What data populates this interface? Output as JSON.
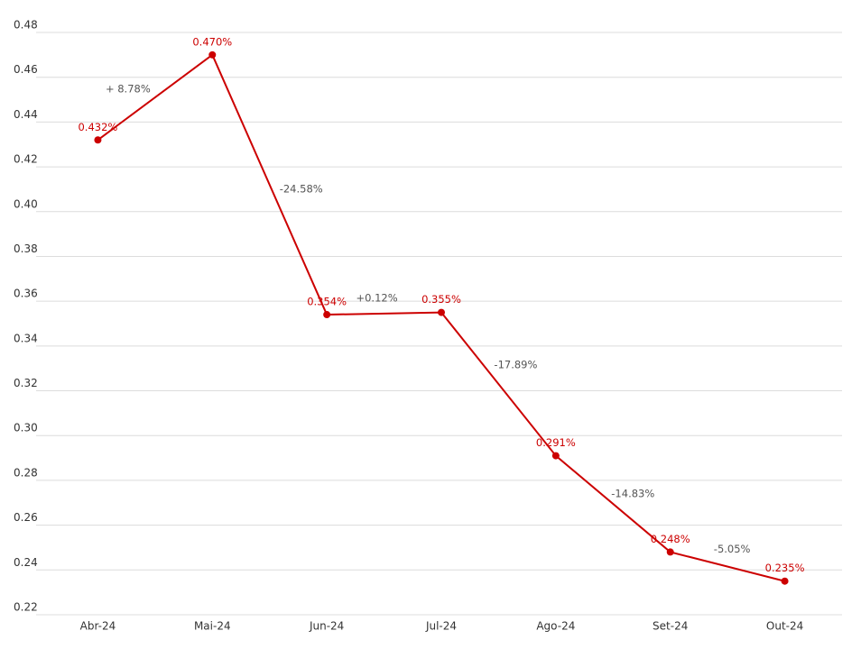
{
  "chart_data": {
    "type": "line",
    "categories": [
      "Abr-24",
      "Mai-24",
      "Jun-24",
      "Jul-24",
      "Ago-24",
      "Set-24",
      "Out-24"
    ],
    "series": [
      {
        "color": "#cc0000",
        "values": [
          0.432,
          0.47,
          0.354,
          0.355,
          0.291,
          0.248,
          0.235
        ],
        "value_labels": [
          "0.432%",
          "0.470%",
          "0.354%",
          "0.355%",
          "0.291%",
          "0.248%",
          "0.235%"
        ]
      }
    ],
    "annotations": [
      "+ 8.78%",
      "-24.58%",
      "+0.12%",
      "-17.89%",
      "-14.83%",
      "-5.05%"
    ],
    "ylim": [
      0.22,
      0.48
    ],
    "yticks": [
      0.22,
      0.24,
      0.26,
      0.28,
      {
        "value": 0.3,
        "label": "0.30"
      },
      0.32,
      0.34,
      0.36,
      0.38,
      {
        "value": 0.4,
        "label": "0.40"
      },
      0.42,
      0.44,
      0.46,
      0.48
    ],
    "grid": true
  }
}
